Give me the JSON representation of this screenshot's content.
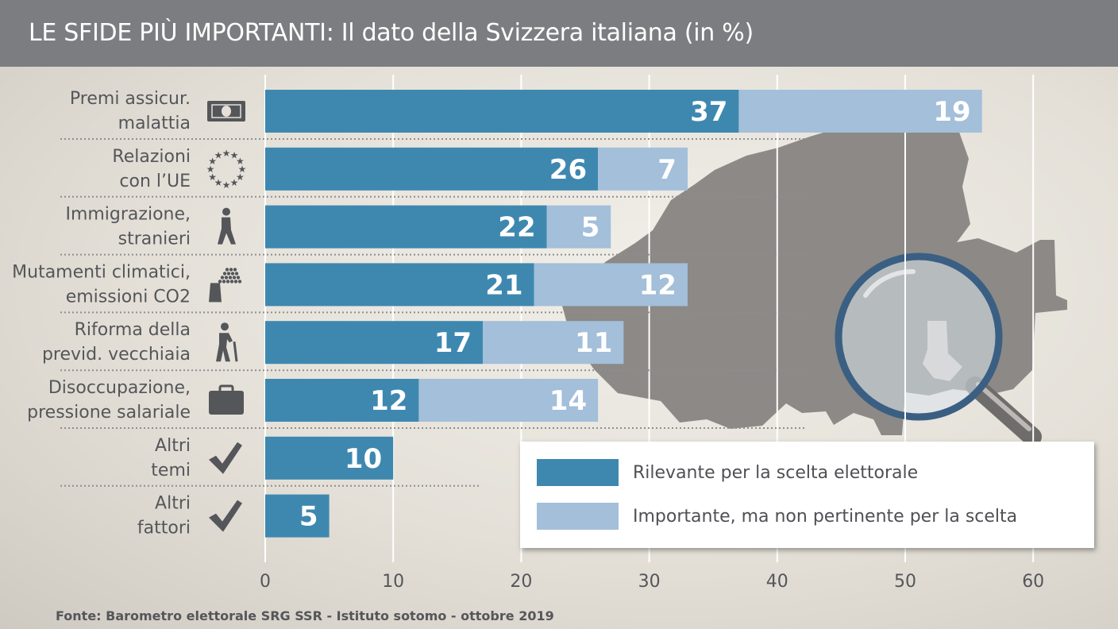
{
  "header": {
    "title": "LE SFIDE PIÙ IMPORTANTI: Il dato della Svizzera italiana (in %)"
  },
  "footer": {
    "source": "Fonte: Barometro elettorale SRG SSR - Istituto sotomo - ottobre 2019"
  },
  "colors": {
    "series_dark": "#3e88b0",
    "series_light": "#a3bfd9",
    "map": "#8c8986",
    "titlebar": "#7c7d80"
  },
  "chart_data": {
    "type": "bar",
    "orientation": "horizontal",
    "stacked": true,
    "title": "LE SFIDE PIÙ IMPORTANTI: Il dato della Svizzera italiana (in %)",
    "categories": [
      [
        "Premi assicur.",
        "malattia"
      ],
      [
        "Relazioni",
        "con l’UE"
      ],
      [
        "Immigrazione,",
        "stranieri"
      ],
      [
        "Mutamenti climatici,",
        "emissioni CO2"
      ],
      [
        "Riforma della",
        "previd. vecchiaia"
      ],
      [
        "Disoccupazione,",
        "pressione salariale"
      ],
      [
        "Altri",
        "temi"
      ],
      [
        "Altri",
        "fattori"
      ]
    ],
    "category_icons": [
      "banknote-icon",
      "eu-stars-icon",
      "walking-person-icon",
      "factory-smoke-icon",
      "elderly-person-cane-icon",
      "briefcase-icon",
      "checkmark-icon",
      "checkmark-icon"
    ],
    "series": [
      {
        "name": "Rilevante per la scelta elettorale",
        "values": [
          37,
          26,
          22,
          21,
          17,
          12,
          10,
          5
        ]
      },
      {
        "name": "Importante, ma non pertinente per la scelta",
        "values": [
          19,
          7,
          5,
          12,
          11,
          14,
          null,
          null
        ]
      }
    ],
    "x_ticks": [
      "0",
      "10",
      "20",
      "30",
      "40",
      "50",
      "60"
    ],
    "xlim": [
      0,
      60
    ],
    "grid": true,
    "legend_position": "bottom-right"
  }
}
